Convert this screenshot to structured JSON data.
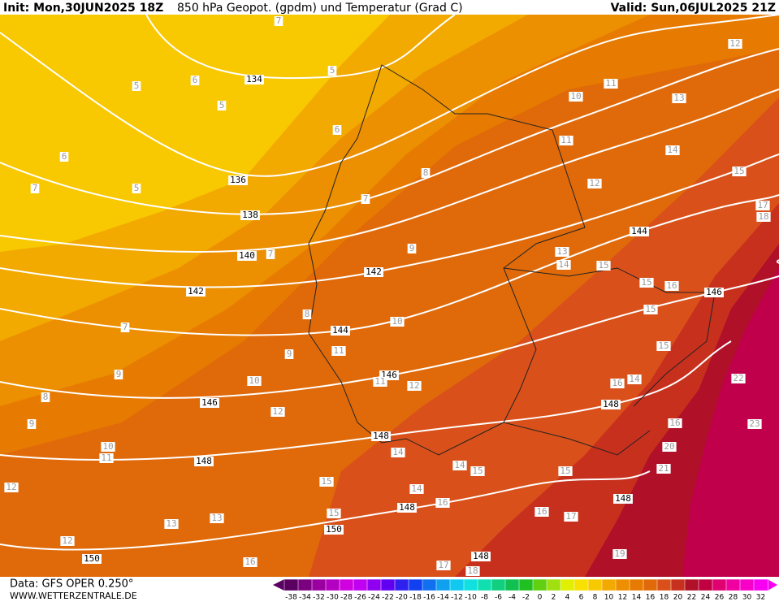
{
  "header": {
    "init": "Init: Mon,30JUN2025 18Z",
    "title": "850 hPa Geopot. (gpdm) und Temperatur (Grad C)",
    "valid": "Valid: Sun,06JUL2025 21Z"
  },
  "footer": {
    "data": "Data: GFS OPER 0.250°",
    "site": "WWW.WETTERZENTRALE.DE"
  },
  "colorbar": {
    "labels": [
      -38,
      -34,
      -32,
      -30,
      -28,
      -26,
      -24,
      -22,
      -20,
      -18,
      -16,
      -14,
      -12,
      -10,
      -8,
      -6,
      -4,
      -2,
      0,
      2,
      4,
      6,
      8,
      10,
      12,
      14,
      16,
      18,
      20,
      22,
      24,
      26,
      28,
      30,
      32
    ],
    "colors": [
      "#5a0060",
      "#7a0080",
      "#9a00a0",
      "#b400c0",
      "#d000e0",
      "#c000f0",
      "#9000f0",
      "#6000f0",
      "#3020f0",
      "#1040f0",
      "#1070f0",
      "#10a0f0",
      "#10c8f0",
      "#10e0e0",
      "#10e0b0",
      "#10d080",
      "#10c050",
      "#20c020",
      "#60d010",
      "#a0e010",
      "#e0f000",
      "#f8e000",
      "#f8c800",
      "#f2a900",
      "#ec8f00",
      "#e77a00",
      "#e06a0a",
      "#d9501a",
      "#c8301e",
      "#b01028",
      "#c00040",
      "#e00070",
      "#f000a0",
      "#f800c8",
      "#f800f0"
    ]
  },
  "map": {
    "geopotential_labels": [
      134,
      136,
      138,
      140,
      142,
      142,
      144,
      144,
      146,
      146,
      146,
      148,
      148,
      148,
      148,
      148,
      148,
      150,
      150
    ],
    "temperature_labels": [
      5,
      5,
      5,
      5,
      6,
      6,
      6,
      7,
      7,
      7,
      7,
      7,
      8,
      8,
      8,
      9,
      9,
      9,
      9,
      10,
      10,
      10,
      10,
      11,
      11,
      11,
      11,
      11,
      12,
      12,
      12,
      12,
      12,
      12,
      13,
      13,
      13,
      13,
      14,
      14,
      14,
      14,
      14,
      14,
      15,
      15,
      15,
      15,
      15,
      15,
      15,
      15,
      15,
      16,
      16,
      16,
      16,
      16,
      16,
      17,
      17,
      17,
      18,
      18,
      19,
      20,
      21,
      22,
      23
    ]
  }
}
